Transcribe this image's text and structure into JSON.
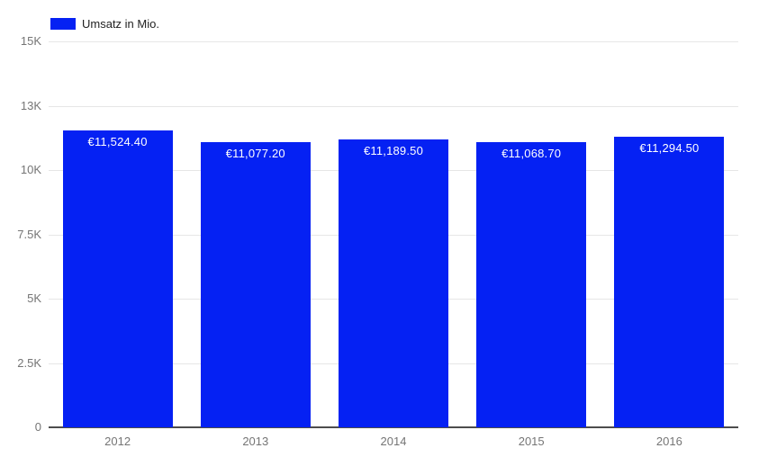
{
  "chart_data": {
    "type": "bar",
    "title": "",
    "legend": "Umsatz in Mio.",
    "legend_position": "top-left",
    "categories": [
      "2012",
      "2013",
      "2014",
      "2015",
      "2016"
    ],
    "series": [
      {
        "name": "Umsatz in Mio.",
        "values": [
          11524.4,
          11077.2,
          11189.5,
          11068.7,
          11294.5
        ],
        "value_labels": [
          "€11,524.40",
          "€11,077.20",
          "€11,189.50",
          "€11,068.70",
          "€11,294.50"
        ]
      }
    ],
    "xlabel": "",
    "ylabel": "",
    "ylim": [
      0,
      15000
    ],
    "grid": true,
    "yticks": [
      {
        "value": 0,
        "label": "0"
      },
      {
        "value": 2500,
        "label": "2.5K"
      },
      {
        "value": 5000,
        "label": "5K"
      },
      {
        "value": 7500,
        "label": "7.5K"
      },
      {
        "value": 10000,
        "label": "10K"
      },
      {
        "value": 12500,
        "label": "13K"
      },
      {
        "value": 15000,
        "label": "15K"
      }
    ],
    "colors": {
      "bar": "#0521f3",
      "annotation_text": "#ffffff",
      "gridline": "#e6e6e6",
      "axis_line": "#4d4d4d",
      "tick_text": "#757575",
      "legend_text": "#222222",
      "background": "#ffffff"
    }
  }
}
